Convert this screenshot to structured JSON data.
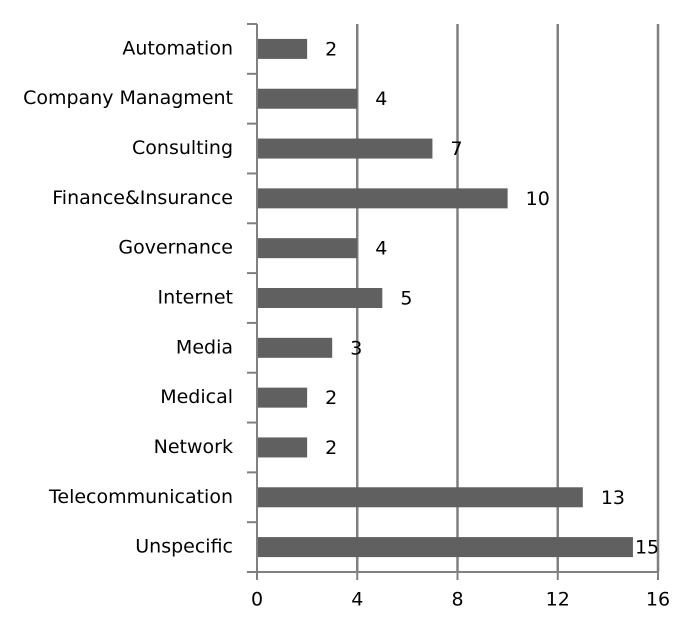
{
  "chart_data": {
    "type": "bar",
    "orientation": "horizontal",
    "categories": [
      "Automation",
      "Company Managment",
      "Consulting",
      "Finance&Insurance",
      "Governance",
      "Internet",
      "Media",
      "Medical",
      "Network",
      "Telecommunication",
      "Unspecific"
    ],
    "values": [
      2,
      4,
      7,
      10,
      4,
      5,
      3,
      2,
      2,
      13,
      15
    ],
    "value_labels": [
      "2",
      "4",
      "7",
      "10",
      "4",
      "5",
      "3",
      "2",
      "2",
      "13",
      "15"
    ],
    "xlim": [
      0,
      16
    ],
    "xticks": [
      0,
      4,
      8,
      12,
      16
    ],
    "xtick_labels": [
      "0",
      "4",
      "8",
      "12",
      "16"
    ],
    "grid": "vertical",
    "legend": "none",
    "colors": {
      "bar": "#606060",
      "grid": "#808080",
      "axis": "#808080",
      "text": "#000000"
    }
  }
}
